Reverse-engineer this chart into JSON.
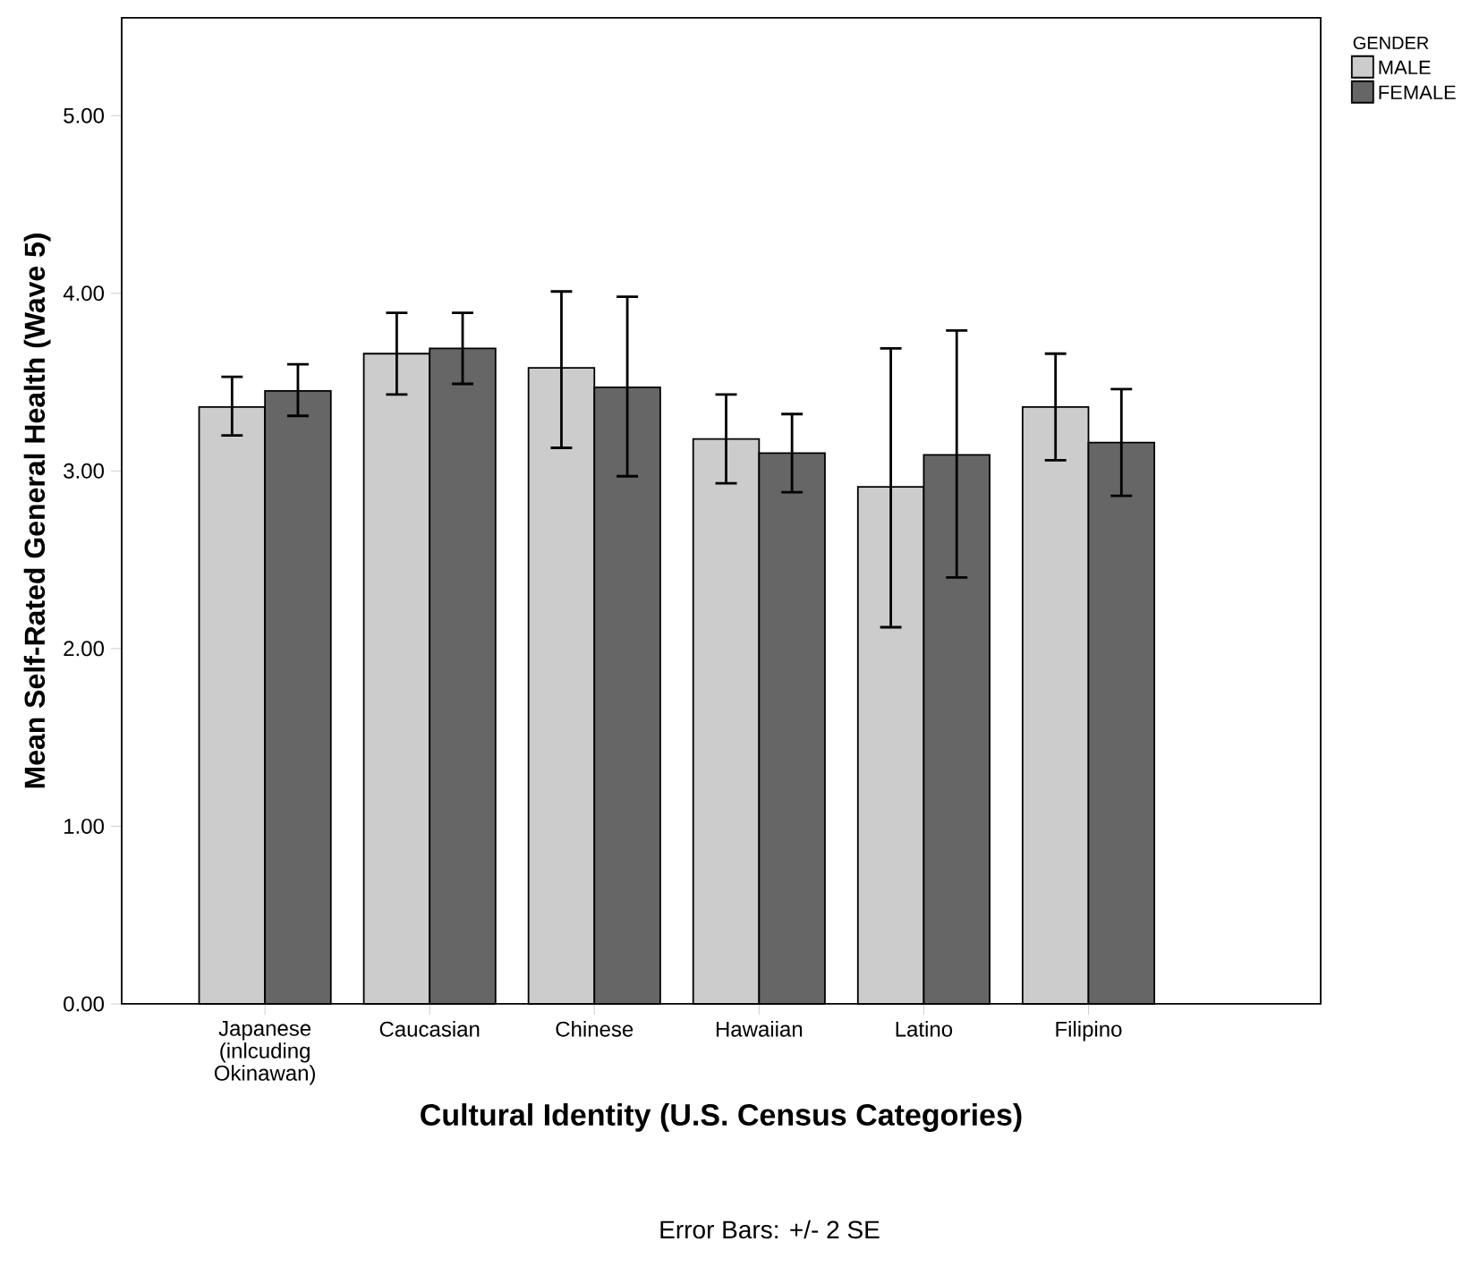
{
  "chart_data": {
    "type": "bar",
    "xlabel": "Cultural Identity (U.S. Census Categories)",
    "ylabel": "Mean Self-Rated General Health (Wave 5)",
    "legend_title": "GENDER",
    "categories": [
      "Japanese (inlcuding Okinawan)",
      "Caucasian",
      "Chinese",
      "Hawaiian",
      "Latino",
      "Filipino"
    ],
    "series": [
      {
        "name": "MALE",
        "color": "#cccccc",
        "values": [
          3.36,
          3.66,
          3.58,
          3.18,
          2.91,
          3.36
        ],
        "errors": [
          [
            3.2,
            3.53
          ],
          [
            3.43,
            3.89
          ],
          [
            3.13,
            4.01
          ],
          [
            2.93,
            3.43
          ],
          [
            2.12,
            3.69
          ],
          [
            3.06,
            3.66
          ]
        ]
      },
      {
        "name": "FEMALE",
        "color": "#666666",
        "values": [
          3.45,
          3.69,
          3.47,
          3.1,
          3.09,
          3.16
        ],
        "errors": [
          [
            3.31,
            3.6
          ],
          [
            3.49,
            3.89
          ],
          [
            2.97,
            3.98
          ],
          [
            2.88,
            3.32
          ],
          [
            2.4,
            3.79
          ],
          [
            2.86,
            3.46
          ]
        ]
      }
    ],
    "ylim": [
      0,
      5.55
    ],
    "yticks": [
      {
        "value": 0,
        "label": "0.00"
      },
      {
        "value": 1,
        "label": "1.00"
      },
      {
        "value": 2,
        "label": "2.00"
      },
      {
        "value": 3,
        "label": "3.00"
      },
      {
        "value": 4,
        "label": "4.00"
      },
      {
        "value": 5,
        "label": "5.00"
      }
    ],
    "legend": "top right",
    "annotations": [
      "Error Bars: +/- 2 SE"
    ]
  }
}
